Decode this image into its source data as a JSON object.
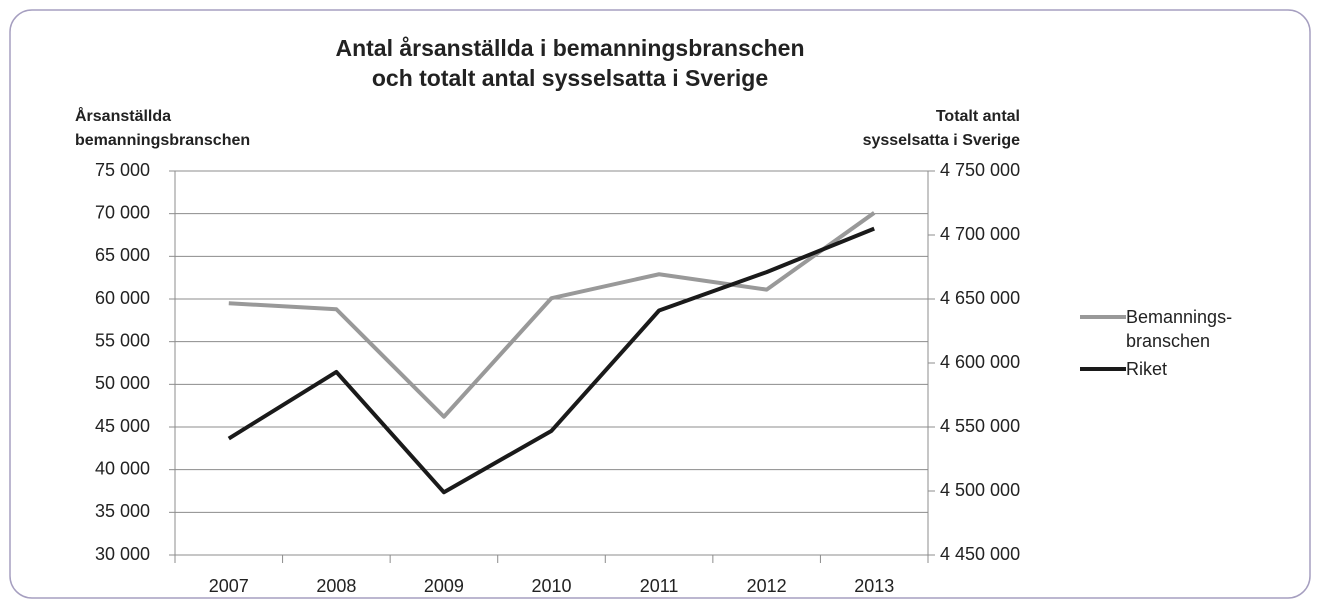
{
  "chart_data": {
    "type": "line",
    "title": [
      "Antal årsanställda i bemanningsbranschen",
      "och totalt antal sysselsatta i Sverige"
    ],
    "y_label": [
      "Årsanställda",
      "bemanningsbranschen"
    ],
    "y2_label": [
      "Totalt antal",
      "sysselsatta i Sverige"
    ],
    "categories": [
      "2007",
      "2008",
      "2009",
      "2010",
      "2011",
      "2012",
      "2013"
    ],
    "series": [
      {
        "name": "Bemannings-branschen",
        "color": "#999999",
        "values": [
          59500,
          58800,
          46200,
          60100,
          62900,
          61100,
          70100
        ]
      },
      {
        "name": "Riket",
        "color": "#1a1a1a",
        "axis": "y2",
        "values": [
          4541000,
          4593000,
          4499000,
          4547000,
          4641000,
          4671000,
          4705000
        ]
      }
    ],
    "ylim": [
      30000,
      75000
    ],
    "yticks": [
      {
        "value": 30000,
        "label": "30 000"
      },
      {
        "value": 35000,
        "label": "35 000"
      },
      {
        "value": 40000,
        "label": "40 000"
      },
      {
        "value": 45000,
        "label": "45 000"
      },
      {
        "value": 50000,
        "label": "50 000"
      },
      {
        "value": 55000,
        "label": "55 000"
      },
      {
        "value": 60000,
        "label": "60 000"
      },
      {
        "value": 65000,
        "label": "65 000"
      },
      {
        "value": 70000,
        "label": "70 000"
      },
      {
        "value": 75000,
        "label": "75 000"
      }
    ],
    "y2lim": [
      4450000,
      4750000
    ],
    "y2ticks": [
      {
        "value": 4450000,
        "label": "4 450 000"
      },
      {
        "value": 4500000,
        "label": "4 500 000"
      },
      {
        "value": 4550000,
        "label": "4 550 000"
      },
      {
        "value": 4600000,
        "label": "4 600 000"
      },
      {
        "value": 4650000,
        "label": "4 650 000"
      },
      {
        "value": 4700000,
        "label": "4 700 000"
      },
      {
        "value": 4750000,
        "label": "4 750 000"
      }
    ],
    "grid": true,
    "legend": "right"
  }
}
